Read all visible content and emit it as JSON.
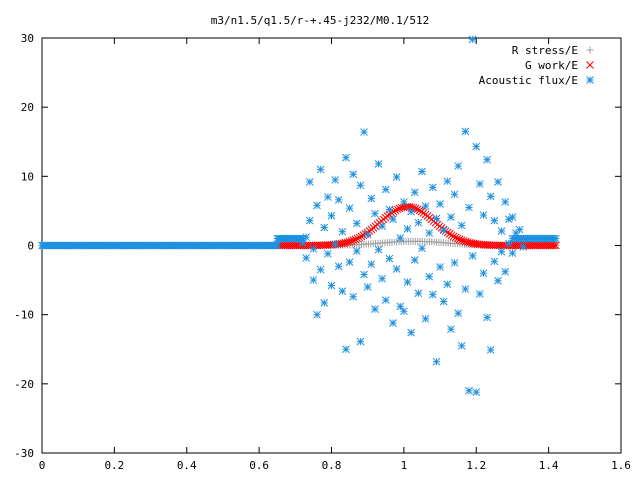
{
  "chart_data": {
    "type": "scatter",
    "title": "m3/n1.5/q1.5/r-+.45-j232/M0.1/512",
    "xlabel": "",
    "ylabel": "",
    "xlim": [
      0,
      1.6
    ],
    "ylim": [
      -30,
      30
    ],
    "x_ticks": [
      "0",
      "0.2",
      "0.4",
      "0.6",
      "0.8",
      "1",
      "1.2",
      "1.4",
      "1.6"
    ],
    "y_ticks": [
      "-30",
      "-20",
      "-10",
      "0",
      "10",
      "20",
      "30"
    ],
    "x_tick_values": [
      0,
      0.2,
      0.4,
      0.6,
      0.8,
      1.0,
      1.2,
      1.4,
      1.6
    ],
    "y_tick_values": [
      -30,
      -20,
      -10,
      0,
      10,
      20,
      30
    ],
    "grid": false,
    "legend_position": "top-right",
    "series": [
      {
        "name": "R stress/E",
        "marker": "plus",
        "color": "#a0a0a0",
        "profile": {
          "kind": "gaussian",
          "x_start": 0.65,
          "x_end": 1.42,
          "peak_x": 1.03,
          "peak_y": 0.6,
          "width": 0.09,
          "n": 120
        }
      },
      {
        "name": "G work/E",
        "marker": "cross",
        "color": "#ff0000",
        "profile": {
          "kind": "gaussian",
          "x_start": 0.65,
          "x_end": 1.42,
          "peak_x": 1.01,
          "peak_y": 5.6,
          "width": 0.075,
          "n": 140
        }
      },
      {
        "name": "Acoustic flux/E",
        "marker": "star",
        "color": "#1e90e0",
        "flat_segments": [
          {
            "x_start": 0.0,
            "x_end": 0.65,
            "y": 0.0,
            "n": 160
          },
          {
            "x_start": 0.65,
            "x_end": 0.72,
            "y": 1.0,
            "n": 18
          },
          {
            "x_start": 1.3,
            "x_end": 1.42,
            "y": 1.0,
            "n": 24
          }
        ],
        "points": [
          [
            0.72,
            0.4
          ],
          [
            0.73,
            1.2
          ],
          [
            0.73,
            -1.8
          ],
          [
            0.74,
            9.2
          ],
          [
            0.74,
            3.6
          ],
          [
            0.75,
            -0.5
          ],
          [
            0.75,
            -5.0
          ],
          [
            0.76,
            5.8
          ],
          [
            0.76,
            -10.0
          ],
          [
            0.77,
            11.0
          ],
          [
            0.77,
            -3.5
          ],
          [
            0.78,
            2.6
          ],
          [
            0.78,
            -8.3
          ],
          [
            0.79,
            7.0
          ],
          [
            0.79,
            -1.2
          ],
          [
            0.8,
            4.3
          ],
          [
            0.8,
            -5.8
          ],
          [
            0.81,
            9.5
          ],
          [
            0.81,
            0.2
          ],
          [
            0.82,
            -3.0
          ],
          [
            0.82,
            6.6
          ],
          [
            0.83,
            -6.6
          ],
          [
            0.83,
            2.0
          ],
          [
            0.84,
            12.7
          ],
          [
            0.84,
            -15.0
          ],
          [
            0.85,
            5.4
          ],
          [
            0.85,
            -2.4
          ],
          [
            0.86,
            10.3
          ],
          [
            0.86,
            -7.4
          ],
          [
            0.87,
            3.2
          ],
          [
            0.87,
            -0.8
          ],
          [
            0.88,
            8.7
          ],
          [
            0.88,
            -13.9
          ],
          [
            0.89,
            16.4
          ],
          [
            0.89,
            -4.2
          ],
          [
            0.9,
            1.6
          ],
          [
            0.9,
            -6.0
          ],
          [
            0.91,
            6.8
          ],
          [
            0.91,
            -2.7
          ],
          [
            0.92,
            4.6
          ],
          [
            0.92,
            -9.2
          ],
          [
            0.93,
            11.8
          ],
          [
            0.93,
            -0.6
          ],
          [
            0.94,
            2.8
          ],
          [
            0.94,
            -4.8
          ],
          [
            0.95,
            8.1
          ],
          [
            0.95,
            -7.9
          ],
          [
            0.96,
            5.2
          ],
          [
            0.96,
            -1.9
          ],
          [
            0.97,
            3.8
          ],
          [
            0.97,
            -11.2
          ],
          [
            0.98,
            9.9
          ],
          [
            0.98,
            -3.4
          ],
          [
            0.99,
            1.1
          ],
          [
            0.99,
            -8.8
          ],
          [
            1.0,
            6.3
          ],
          [
            1.0,
            -9.5
          ],
          [
            1.01,
            2.4
          ],
          [
            1.01,
            -5.3
          ],
          [
            1.02,
            4.9
          ],
          [
            1.02,
            -12.6
          ],
          [
            1.03,
            7.7
          ],
          [
            1.03,
            -2.1
          ],
          [
            1.04,
            3.3
          ],
          [
            1.04,
            -6.9
          ],
          [
            1.05,
            10.7
          ],
          [
            1.05,
            -0.4
          ],
          [
            1.06,
            5.7
          ],
          [
            1.06,
            -10.6
          ],
          [
            1.07,
            1.8
          ],
          [
            1.07,
            -4.5
          ],
          [
            1.08,
            8.4
          ],
          [
            1.08,
            -7.1
          ],
          [
            1.09,
            3.9
          ],
          [
            1.09,
            -16.8
          ],
          [
            1.1,
            6.0
          ],
          [
            1.1,
            -3.1
          ],
          [
            1.11,
            2.2
          ],
          [
            1.11,
            -8.1
          ],
          [
            1.12,
            9.3
          ],
          [
            1.12,
            -5.6
          ],
          [
            1.13,
            4.1
          ],
          [
            1.13,
            -12.1
          ],
          [
            1.14,
            7.4
          ],
          [
            1.14,
            -2.5
          ],
          [
            1.15,
            11.5
          ],
          [
            1.15,
            -9.8
          ],
          [
            1.16,
            2.9
          ],
          [
            1.16,
            -14.5
          ],
          [
            1.17,
            16.5
          ],
          [
            1.17,
            -6.3
          ],
          [
            1.18,
            5.5
          ],
          [
            1.18,
            -21.0
          ],
          [
            1.19,
            29.8
          ],
          [
            1.19,
            -1.5
          ],
          [
            1.2,
            14.3
          ],
          [
            1.2,
            -21.2
          ],
          [
            1.21,
            8.9
          ],
          [
            1.21,
            -7.0
          ],
          [
            1.22,
            4.4
          ],
          [
            1.22,
            -4.0
          ],
          [
            1.23,
            12.4
          ],
          [
            1.23,
            -10.4
          ],
          [
            1.24,
            7.1
          ],
          [
            1.24,
            -15.1
          ],
          [
            1.25,
            3.6
          ],
          [
            1.25,
            -2.3
          ],
          [
            1.26,
            9.2
          ],
          [
            1.26,
            -5.1
          ],
          [
            1.27,
            2.1
          ],
          [
            1.27,
            -0.9
          ],
          [
            1.28,
            6.3
          ],
          [
            1.28,
            -3.8
          ],
          [
            1.29,
            3.8
          ],
          [
            1.29,
            0.3
          ],
          [
            1.3,
            4.1
          ],
          [
            1.3,
            -1.1
          ],
          [
            1.31,
            1.8
          ],
          [
            1.32,
            2.3
          ],
          [
            1.33,
            -0.2
          ]
        ]
      }
    ]
  }
}
